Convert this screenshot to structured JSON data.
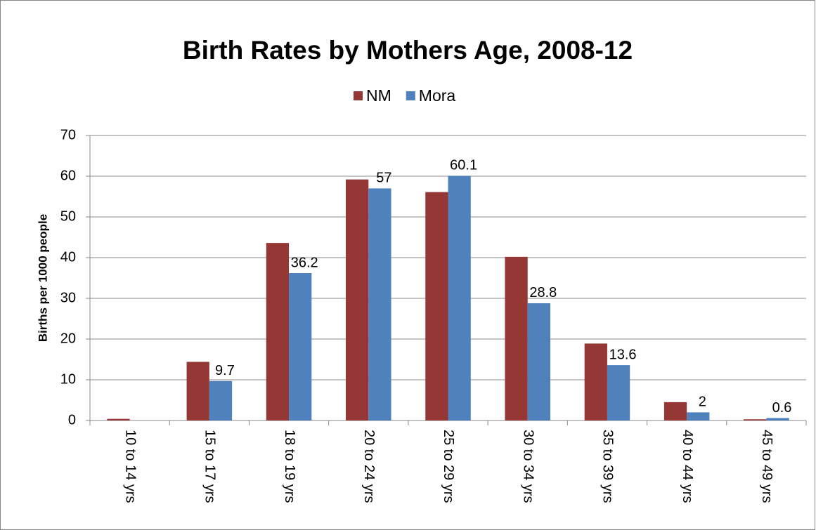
{
  "chart_data": {
    "type": "bar",
    "title": "Birth Rates by Mothers Age, 2008-12",
    "y_label": "Births per 1000 people",
    "categories": [
      "10 to 14 yrs",
      "15 to 17 yrs",
      "18 to 19 yrs",
      "20 to 24 yrs",
      "25 to 29 yrs",
      "30 to 34 yrs",
      "35 to 39 yrs",
      "40 to 44 yrs",
      "45 to 49 yrs"
    ],
    "series": [
      {
        "name": "NM",
        "color": "#953735",
        "values": [
          0.4,
          14.4,
          43.6,
          59.2,
          56.1,
          40.2,
          18.9,
          4.5,
          0.3
        ]
      },
      {
        "name": "Mora",
        "color": "#4f81bd",
        "values": [
          null,
          9.7,
          36.2,
          57,
          60.1,
          28.8,
          13.6,
          2,
          0.6
        ],
        "data_labels": true
      }
    ],
    "ylim": [
      0,
      70
    ],
    "yticks": [
      0,
      10,
      20,
      30,
      40,
      50,
      60,
      70
    ],
    "grid": true,
    "legend": "top"
  }
}
